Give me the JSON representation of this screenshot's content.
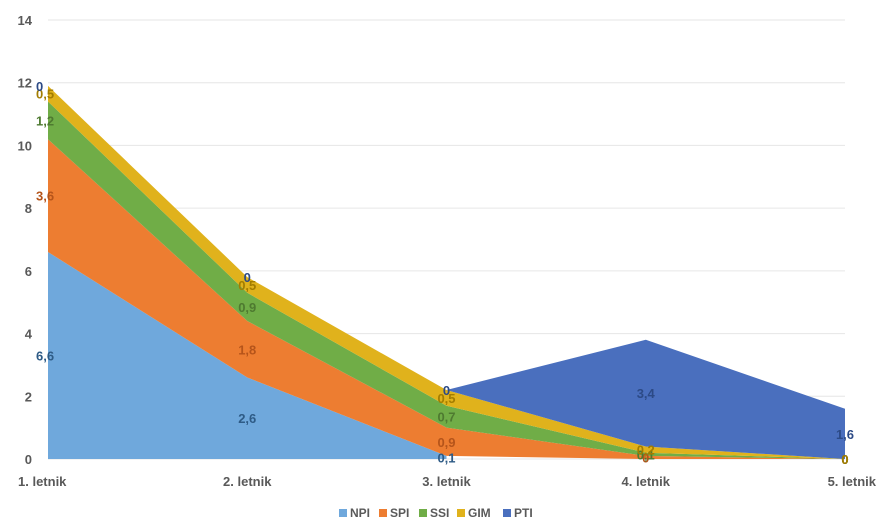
{
  "chart_data": {
    "type": "area",
    "stacked": true,
    "title": "",
    "xlabel": "",
    "ylabel": "",
    "categories": [
      "1. letnik",
      "2. letnik",
      "3. letnik",
      "4. letnik",
      "5. letnik"
    ],
    "ylim": [
      0,
      14
    ],
    "yticks": [
      "0",
      "2",
      "4",
      "6",
      "8",
      "10",
      "12",
      "14"
    ],
    "grid": true,
    "legend_position": "bottom",
    "series": [
      {
        "name": "NPI",
        "color": "#6fa8dc",
        "labelColor": "#2e5b86",
        "values": [
          6.6,
          2.6,
          0.1,
          null,
          null
        ],
        "labels": [
          "6,6",
          "2,6",
          "0,1",
          "",
          ""
        ]
      },
      {
        "name": "SPI",
        "color": "#ed7d31",
        "labelColor": "#b5541a",
        "values": [
          3.6,
          1.8,
          0.9,
          0.1,
          0
        ],
        "labels": [
          "3,6",
          "1,8",
          "0,9",
          "0",
          "0"
        ]
      },
      {
        "name": "SSI",
        "color": "#70ad47",
        "labelColor": "#4e7a30",
        "values": [
          1.2,
          0.9,
          0.7,
          0.1,
          0
        ],
        "labels": [
          "1,2",
          "0,9",
          "0,7",
          "0,1",
          "0"
        ]
      },
      {
        "name": "GIM",
        "color": "#e0b21c",
        "labelColor": "#a37d00",
        "values": [
          0.5,
          0.5,
          0.5,
          0.2,
          0
        ],
        "labels": [
          "0,5",
          "0,5",
          "0,5",
          "0,2",
          "0"
        ]
      },
      {
        "name": "PTI",
        "color": "#4a6fbe",
        "labelColor": "#2c4a86",
        "values": [
          0,
          0,
          0,
          3.4,
          1.6
        ],
        "labels": [
          "0",
          "0",
          "0",
          "3,4",
          "1,6"
        ]
      }
    ]
  }
}
